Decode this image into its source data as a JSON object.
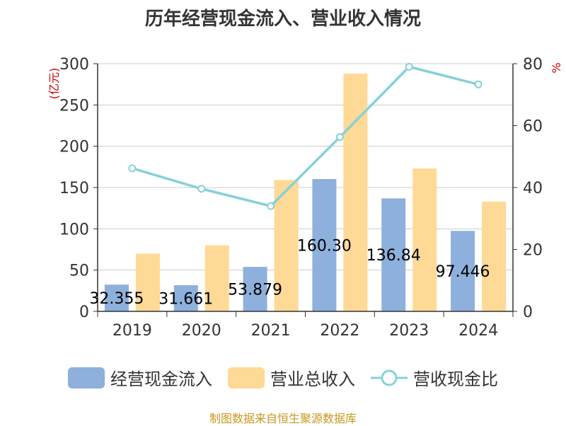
{
  "chart_data": {
    "type": "bar",
    "title": "历年经营现金流入、营业收入情况",
    "categories": [
      "2019",
      "2020",
      "2021",
      "2022",
      "2023",
      "2024"
    ],
    "series": [
      {
        "name": "经营现金流入",
        "type": "bar",
        "axis": "left",
        "color": "#8eb0dc",
        "values": [
          32.355,
          31.661,
          53.879,
          160.3,
          136.84,
          97.446
        ],
        "labels": [
          "32.355",
          "31.661",
          "53.879",
          "160.30",
          "136.84",
          "97.446"
        ]
      },
      {
        "name": "营业总收入",
        "type": "bar",
        "axis": "left",
        "color": "#ffd996",
        "values": [
          70,
          80,
          159,
          288,
          173,
          133
        ]
      },
      {
        "name": "营收现金比",
        "type": "line",
        "axis": "right",
        "color": "#86d1d8",
        "values": [
          46.2,
          39.6,
          34,
          56.3,
          79,
          73.3
        ]
      }
    ],
    "ylabel": "(亿元)",
    "ylabel_right": "%",
    "ylim": [
      0,
      300
    ],
    "yticks": [
      "0",
      "50",
      "100",
      "150",
      "200",
      "250",
      "300"
    ],
    "ylim_right": [
      0,
      80
    ],
    "yticks_right": [
      "0",
      "20",
      "40",
      "60",
      "80"
    ],
    "grid": true,
    "legend": "bottom"
  },
  "footer": "制图数据来自恒生聚源数据库"
}
